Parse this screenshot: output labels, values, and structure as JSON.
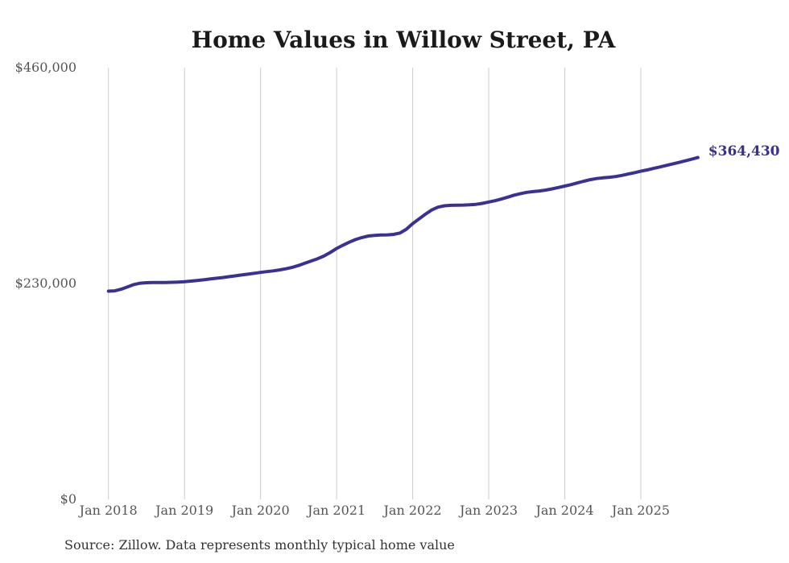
{
  "title": "Home Values in Willow Street, PA",
  "source_note": "Source: Zillow. Data represents monthly typical home value",
  "annotation": {
    "text": "$364,430",
    "value": 364430
  },
  "colors": {
    "background": "#ffffff",
    "line": "#3a3192",
    "annotation_text": "#39318f",
    "gridline": "#cccccc",
    "tick_text": "#555555",
    "title_text": "#1a1a1a",
    "source_text": "#333333"
  },
  "chart_data": {
    "type": "line",
    "title": "Home Values in Willow Street, PA",
    "series_name": "Monthly typical home value",
    "xlabel": "",
    "ylabel": "",
    "ylim": [
      0,
      460000
    ],
    "grid": "vertical-only",
    "legend": "none",
    "frequency": "monthly",
    "start_month": "2018-01",
    "end_month": "2025-10",
    "months": [
      "2018-01",
      "2018-02",
      "2018-03",
      "2018-04",
      "2018-05",
      "2018-06",
      "2018-07",
      "2018-08",
      "2018-09",
      "2018-10",
      "2018-11",
      "2018-12",
      "2019-01",
      "2019-02",
      "2019-03",
      "2019-04",
      "2019-05",
      "2019-06",
      "2019-07",
      "2019-08",
      "2019-09",
      "2019-10",
      "2019-11",
      "2019-12",
      "2020-01",
      "2020-02",
      "2020-03",
      "2020-04",
      "2020-05",
      "2020-06",
      "2020-07",
      "2020-08",
      "2020-09",
      "2020-10",
      "2020-11",
      "2020-12",
      "2021-01",
      "2021-02",
      "2021-03",
      "2021-04",
      "2021-05",
      "2021-06",
      "2021-07",
      "2021-08",
      "2021-09",
      "2021-10",
      "2021-11",
      "2021-12",
      "2022-01",
      "2022-02",
      "2022-03",
      "2022-04",
      "2022-05",
      "2022-06",
      "2022-07",
      "2022-08",
      "2022-09",
      "2022-10",
      "2022-11",
      "2022-12",
      "2023-01",
      "2023-02",
      "2023-03",
      "2023-04",
      "2023-05",
      "2023-06",
      "2023-07",
      "2023-08",
      "2023-09",
      "2023-10",
      "2023-11",
      "2023-12",
      "2024-01",
      "2024-02",
      "2024-03",
      "2024-04",
      "2024-05",
      "2024-06",
      "2024-07",
      "2024-08",
      "2024-09",
      "2024-10",
      "2024-11",
      "2024-12",
      "2025-01",
      "2025-02",
      "2025-03",
      "2025-04",
      "2025-05",
      "2025-06",
      "2025-07",
      "2025-08",
      "2025-09",
      "2025-10"
    ],
    "values": [
      222000,
      222300,
      224000,
      226500,
      229000,
      230500,
      231000,
      231200,
      231200,
      231200,
      231400,
      231700,
      232000,
      232700,
      233400,
      234100,
      234900,
      235700,
      236500,
      237400,
      238300,
      239200,
      240100,
      241000,
      242000,
      242800,
      243600,
      244600,
      245800,
      247400,
      249400,
      251800,
      254200,
      256600,
      259400,
      263200,
      267500,
      271000,
      274200,
      277000,
      279200,
      280800,
      281500,
      281800,
      282000,
      282500,
      284000,
      288000,
      294000,
      299000,
      304000,
      308500,
      311500,
      313000,
      313500,
      313700,
      313800,
      314000,
      314500,
      315600,
      317000,
      318400,
      320200,
      322200,
      324300,
      326000,
      327300,
      328100,
      328800,
      329700,
      331000,
      332500,
      334000,
      335600,
      337400,
      339200,
      340800,
      342000,
      342800,
      343400,
      344200,
      345400,
      346800,
      348300,
      349800,
      351200,
      352800,
      354400,
      356000,
      357600,
      359200,
      360900,
      362600,
      364430
    ],
    "x_tick_labels": [
      "Jan 2018",
      "Jan 2019",
      "Jan 2020",
      "Jan 2021",
      "Jan 2022",
      "Jan 2023",
      "Jan 2024",
      "Jan 2025"
    ],
    "y_ticks": [
      {
        "value": 0,
        "label": "$0"
      },
      {
        "value": 230000,
        "label": "$230,000"
      },
      {
        "value": 460000,
        "label": "$460,000"
      }
    ],
    "end_point_label": "$364,430"
  }
}
